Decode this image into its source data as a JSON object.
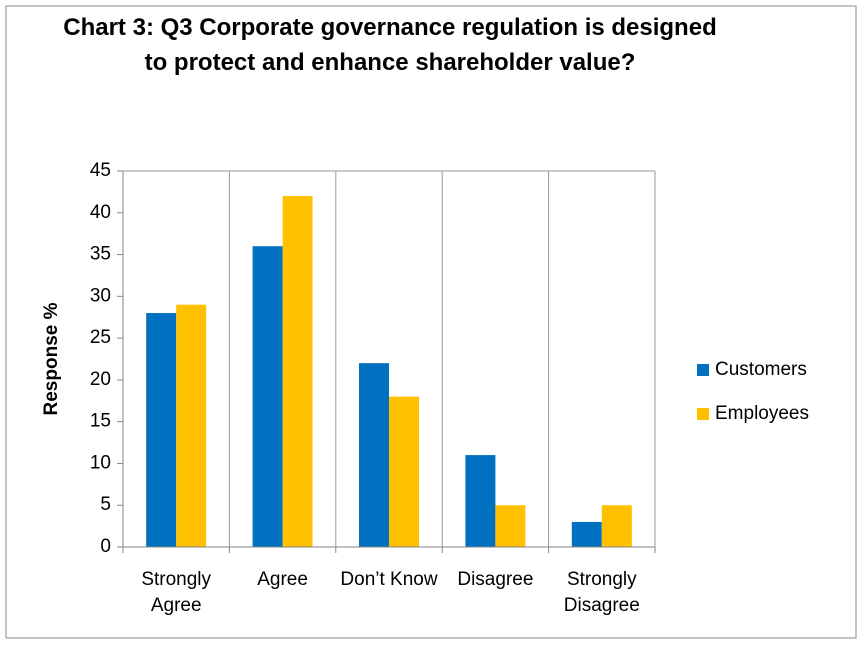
{
  "chart_data": {
    "type": "bar",
    "title": "Chart 3: Q3 Corporate governance regulation is designed to protect and enhance shareholder value?",
    "y_label": "Response %",
    "categories": [
      "Strongly Agree",
      "Agree",
      "Don’t Know",
      "Disagree",
      "Strongly Disagree"
    ],
    "series": [
      {
        "name": "Customers",
        "color": "#0070c0",
        "values": [
          28,
          36,
          22,
          11,
          3
        ]
      },
      {
        "name": "Employees",
        "color": "#ffc000",
        "values": [
          29,
          42,
          18,
          5,
          5
        ]
      }
    ],
    "ylim": [
      0,
      45
    ],
    "yticks": [
      0,
      5,
      10,
      15,
      20,
      25,
      30,
      35,
      40,
      45
    ],
    "legend": "right"
  }
}
